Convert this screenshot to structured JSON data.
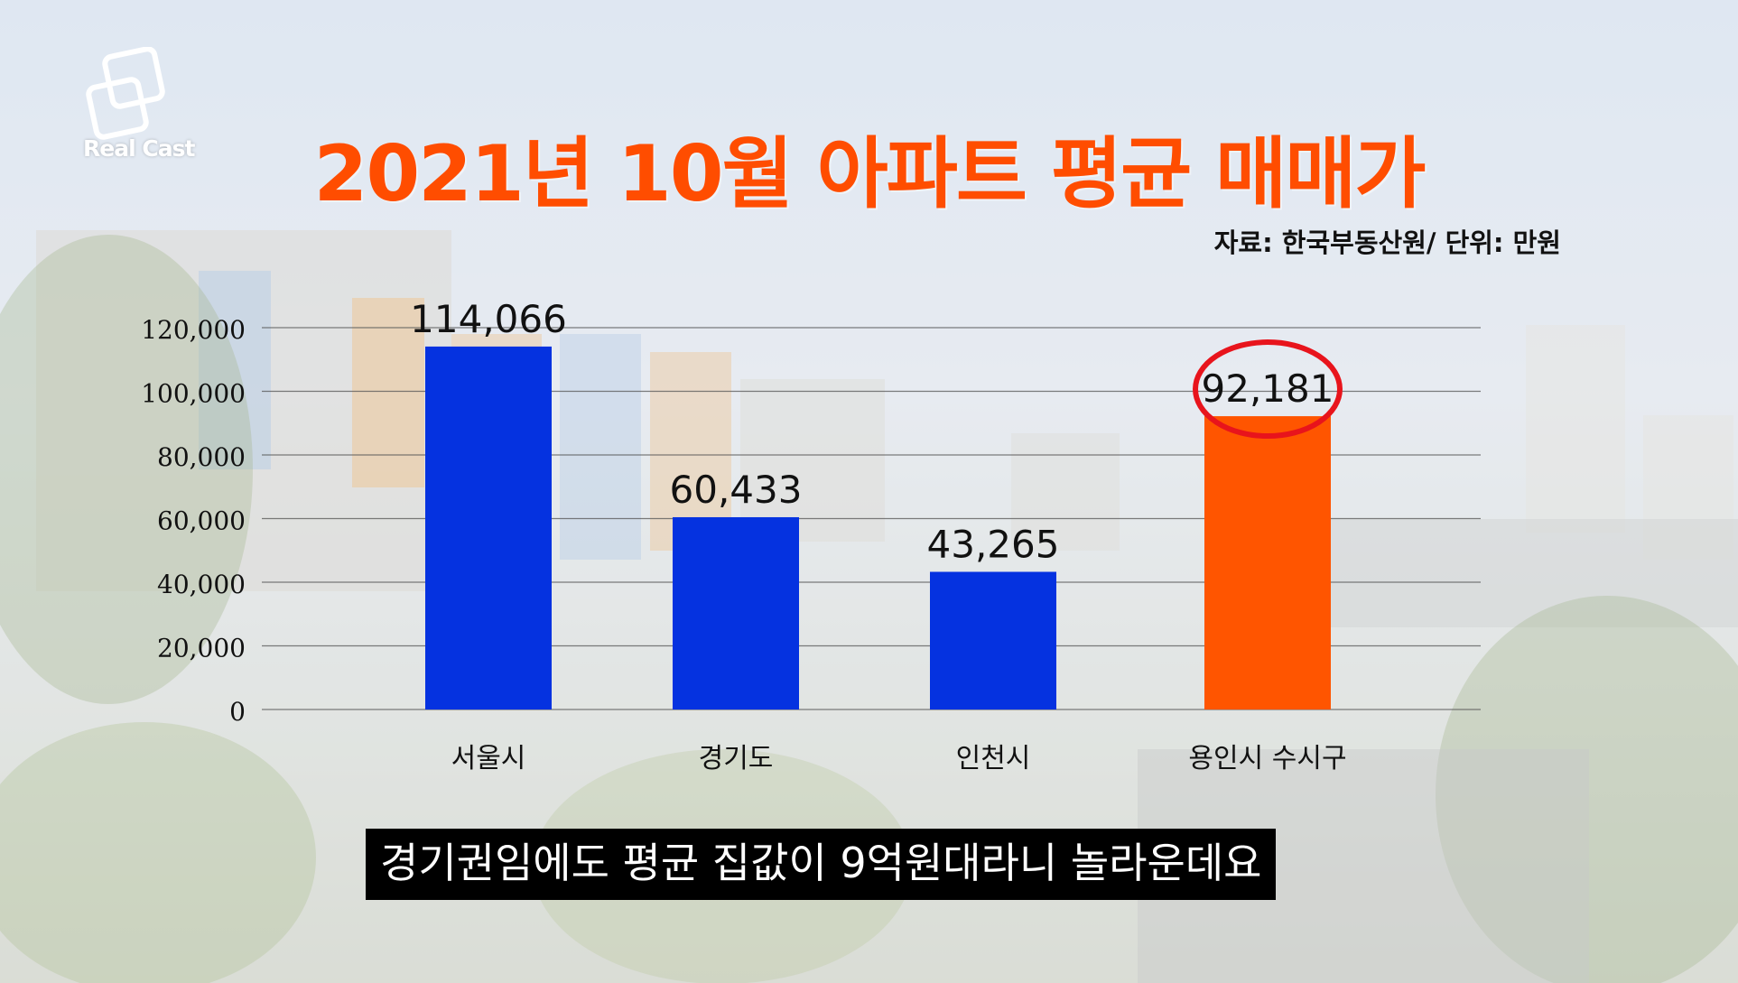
{
  "logo": {
    "text": "Real Cast"
  },
  "source_note": "자료: 한국부동산원/ 단위: 만원",
  "caption": "경기권임에도 평균 집값이 9억원대라니 놀라운데요",
  "colors": {
    "bar": "#0532e0",
    "highlight": "#ff5500",
    "title": "#ff4d00",
    "circle": "#e8141c"
  },
  "chart_data": {
    "type": "bar",
    "title": "2021년 10월 아파트 평균 매매가",
    "categories": [
      "서울시",
      "경기도",
      "인천시",
      "용인시 수시구"
    ],
    "values": [
      114066,
      60433,
      43265,
      92181
    ],
    "value_labels": [
      "114,066",
      "60,433",
      "43,265",
      "92,181"
    ],
    "highlight_index": 3,
    "ylim": [
      0,
      120000
    ],
    "yticks": [
      0,
      20000,
      40000,
      60000,
      80000,
      100000,
      120000
    ],
    "ytick_labels": [
      "0",
      "20,000",
      "40,000",
      "60,000",
      "80,000",
      "100,000",
      "120,000"
    ],
    "grid": true,
    "xlabel": "",
    "ylabel": ""
  }
}
